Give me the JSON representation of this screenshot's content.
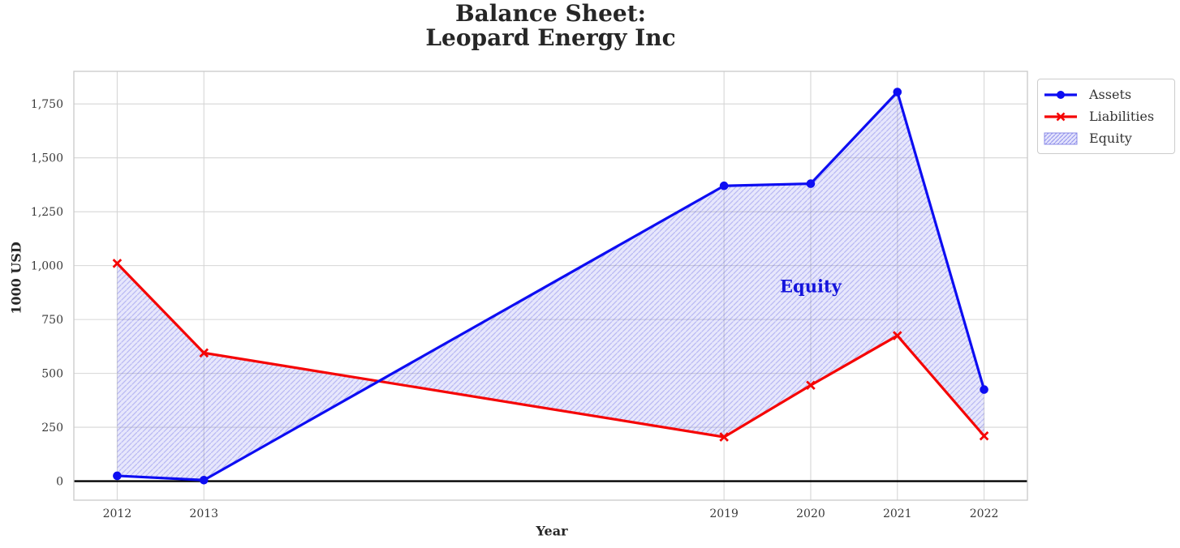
{
  "title": {
    "line1": "Balance Sheet:",
    "line2": "Leopard Energy Inc"
  },
  "chart_data": {
    "type": "line",
    "x": [
      2012,
      2013,
      2019,
      2020,
      2021,
      2022
    ],
    "xtick_labels": [
      "2012",
      "2013",
      "2019",
      "2020",
      "2021",
      "2022"
    ],
    "yticks": [
      0,
      250,
      500,
      750,
      1000,
      1250,
      1500,
      1750
    ],
    "ytick_labels": [
      "0",
      "250",
      "500",
      "750",
      "1,000",
      "1,250",
      "1,500",
      "1,750"
    ],
    "xlabel": "Year",
    "ylabel": "1000 USD",
    "xlim": [
      2011.5,
      2022.5
    ],
    "ylim": [
      -88,
      1901
    ],
    "grid": true,
    "zero_line": true,
    "legend_position": "outside upper right",
    "series": [
      {
        "name": "Assets",
        "marker": "circle",
        "color": "#0d0df2",
        "values": [
          25,
          5,
          1370,
          1380,
          1805,
          425
        ]
      },
      {
        "name": "Liabilities",
        "marker": "x",
        "color": "#f50505",
        "values": [
          1010,
          595,
          205,
          445,
          675,
          210
        ]
      }
    ],
    "fill_between": {
      "name": "Equity",
      "between": [
        "Assets",
        "Liabilities"
      ],
      "fill_color": "#2d2de6",
      "fill_opacity": 0.12,
      "hatch": "//"
    },
    "annotation": {
      "text": "Equity",
      "x": 2020,
      "y": 905,
      "color": "#1414dc"
    }
  },
  "legend": {
    "items": [
      {
        "label": "Assets",
        "swatch": "line-circle"
      },
      {
        "label": "Liabilities",
        "swatch": "line-x"
      },
      {
        "label": "Equity",
        "swatch": "hatch-patch"
      }
    ]
  }
}
